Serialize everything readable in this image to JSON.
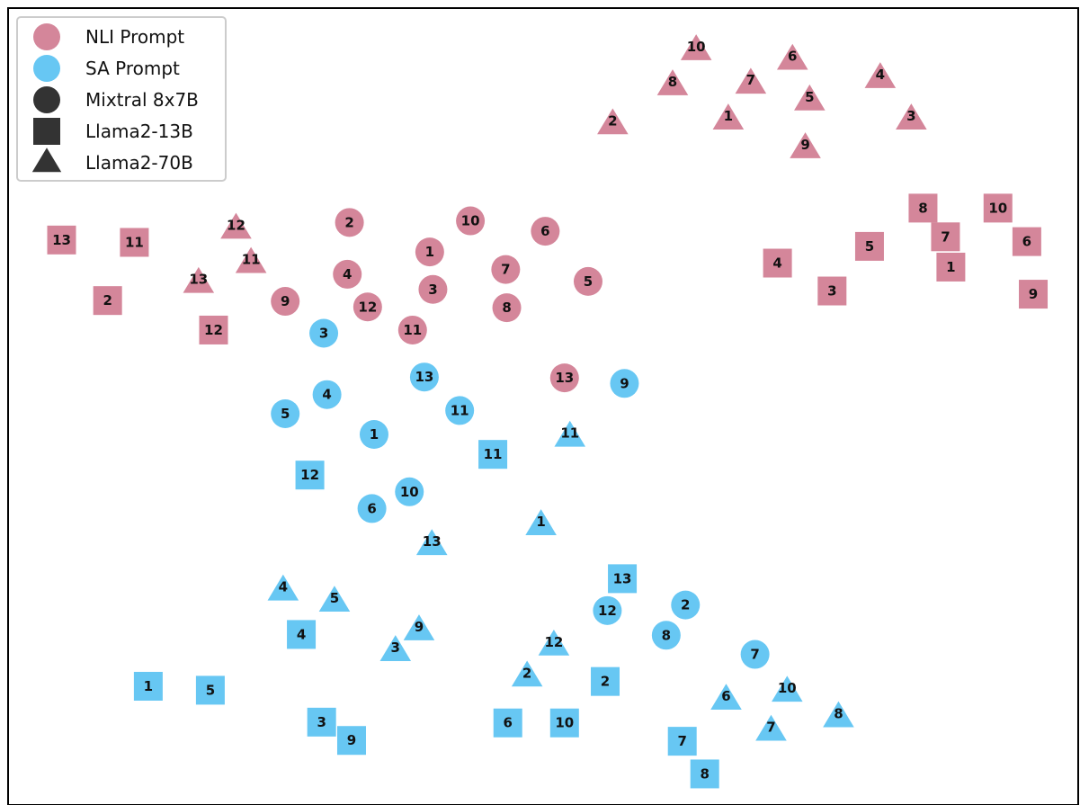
{
  "chart_data": {
    "type": "scatter",
    "title": "",
    "xlabel": "",
    "ylabel": "",
    "axes_visible": false,
    "grid": false,
    "legend_position": "top-left",
    "colors": {
      "NLI Prompt": "#d4869a",
      "SA Prompt": "#67c7f3",
      "legend_marker": "#333333"
    },
    "legend": [
      {
        "label": "NLI Prompt",
        "marker": "circle",
        "color": "#d4869a"
      },
      {
        "label": "SA Prompt",
        "marker": "circle",
        "color": "#67c7f3"
      },
      {
        "label": "Mixtral 8x7B",
        "marker": "circle",
        "color": "#333333"
      },
      {
        "label": "Llama2-13B",
        "marker": "square",
        "color": "#333333"
      },
      {
        "label": "Llama2-70B",
        "marker": "triangle",
        "color": "#333333"
      }
    ],
    "xlim": [
      0,
      1
    ],
    "ylim": [
      0,
      1
    ],
    "series": [
      {
        "prompt": "NLI Prompt",
        "model": "Mixtral 8x7B",
        "marker": "circle",
        "color": "#d4869a",
        "points": [
          {
            "label": "1",
            "x": 0.394,
            "y": 0.694
          },
          {
            "label": "2",
            "x": 0.319,
            "y": 0.731
          },
          {
            "label": "3",
            "x": 0.397,
            "y": 0.647
          },
          {
            "label": "4",
            "x": 0.317,
            "y": 0.666
          },
          {
            "label": "5",
            "x": 0.542,
            "y": 0.657
          },
          {
            "label": "6",
            "x": 0.502,
            "y": 0.72
          },
          {
            "label": "7",
            "x": 0.465,
            "y": 0.672
          },
          {
            "label": "8",
            "x": 0.466,
            "y": 0.624
          },
          {
            "label": "9",
            "x": 0.259,
            "y": 0.632
          },
          {
            "label": "10",
            "x": 0.432,
            "y": 0.733
          },
          {
            "label": "11",
            "x": 0.378,
            "y": 0.596
          },
          {
            "label": "12",
            "x": 0.336,
            "y": 0.625
          },
          {
            "label": "13",
            "x": 0.52,
            "y": 0.536
          }
        ]
      },
      {
        "prompt": "NLI Prompt",
        "model": "Llama2-13B",
        "marker": "square",
        "color": "#d4869a",
        "points": [
          {
            "label": "1",
            "x": 0.881,
            "y": 0.675
          },
          {
            "label": "2",
            "x": 0.093,
            "y": 0.633
          },
          {
            "label": "3",
            "x": 0.77,
            "y": 0.645
          },
          {
            "label": "4",
            "x": 0.719,
            "y": 0.68
          },
          {
            "label": "5",
            "x": 0.805,
            "y": 0.701
          },
          {
            "label": "6",
            "x": 0.952,
            "y": 0.707
          },
          {
            "label": "7",
            "x": 0.876,
            "y": 0.713
          },
          {
            "label": "8",
            "x": 0.855,
            "y": 0.749
          },
          {
            "label": "9",
            "x": 0.958,
            "y": 0.641
          },
          {
            "label": "10",
            "x": 0.925,
            "y": 0.749
          },
          {
            "label": "11",
            "x": 0.118,
            "y": 0.706
          },
          {
            "label": "12",
            "x": 0.192,
            "y": 0.596
          },
          {
            "label": "13",
            "x": 0.05,
            "y": 0.709
          }
        ]
      },
      {
        "prompt": "NLI Prompt",
        "model": "Llama2-70B",
        "marker": "triangle",
        "color": "#d4869a",
        "points": [
          {
            "label": "1",
            "x": 0.673,
            "y": 0.86
          },
          {
            "label": "2",
            "x": 0.565,
            "y": 0.854
          },
          {
            "label": "3",
            "x": 0.844,
            "y": 0.86
          },
          {
            "label": "4",
            "x": 0.815,
            "y": 0.912
          },
          {
            "label": "5",
            "x": 0.749,
            "y": 0.884
          },
          {
            "label": "6",
            "x": 0.733,
            "y": 0.935
          },
          {
            "label": "7",
            "x": 0.694,
            "y": 0.905
          },
          {
            "label": "8",
            "x": 0.621,
            "y": 0.903
          },
          {
            "label": "9",
            "x": 0.745,
            "y": 0.824
          },
          {
            "label": "10",
            "x": 0.643,
            "y": 0.947
          },
          {
            "label": "11",
            "x": 0.227,
            "y": 0.68
          },
          {
            "label": "12",
            "x": 0.213,
            "y": 0.723
          },
          {
            "label": "13",
            "x": 0.178,
            "y": 0.655
          }
        ]
      },
      {
        "prompt": "SA Prompt",
        "model": "Mixtral 8x7B",
        "marker": "circle",
        "color": "#67c7f3",
        "points": [
          {
            "label": "1",
            "x": 0.342,
            "y": 0.465
          },
          {
            "label": "2",
            "x": 0.633,
            "y": 0.251
          },
          {
            "label": "3",
            "x": 0.295,
            "y": 0.592
          },
          {
            "label": "4",
            "x": 0.298,
            "y": 0.515
          },
          {
            "label": "5",
            "x": 0.259,
            "y": 0.491
          },
          {
            "label": "6",
            "x": 0.34,
            "y": 0.372
          },
          {
            "label": "7",
            "x": 0.698,
            "y": 0.189
          },
          {
            "label": "8",
            "x": 0.615,
            "y": 0.213
          },
          {
            "label": "9",
            "x": 0.576,
            "y": 0.529
          },
          {
            "label": "10",
            "x": 0.375,
            "y": 0.393
          },
          {
            "label": "11",
            "x": 0.422,
            "y": 0.495
          },
          {
            "label": "12",
            "x": 0.56,
            "y": 0.244
          },
          {
            "label": "13",
            "x": 0.389,
            "y": 0.537
          }
        ]
      },
      {
        "prompt": "SA Prompt",
        "model": "Llama2-13B",
        "marker": "square",
        "color": "#67c7f3",
        "points": [
          {
            "label": "1",
            "x": 0.131,
            "y": 0.149
          },
          {
            "label": "2",
            "x": 0.558,
            "y": 0.155
          },
          {
            "label": "3",
            "x": 0.293,
            "y": 0.104
          },
          {
            "label": "4",
            "x": 0.274,
            "y": 0.214
          },
          {
            "label": "5",
            "x": 0.189,
            "y": 0.144
          },
          {
            "label": "6",
            "x": 0.467,
            "y": 0.103
          },
          {
            "label": "7",
            "x": 0.63,
            "y": 0.08
          },
          {
            "label": "8",
            "x": 0.651,
            "y": 0.039
          },
          {
            "label": "9",
            "x": 0.321,
            "y": 0.081
          },
          {
            "label": "10",
            "x": 0.52,
            "y": 0.103
          },
          {
            "label": "11",
            "x": 0.453,
            "y": 0.44
          },
          {
            "label": "12",
            "x": 0.282,
            "y": 0.414
          },
          {
            "label": "13",
            "x": 0.574,
            "y": 0.284
          }
        ]
      },
      {
        "prompt": "SA Prompt",
        "model": "Llama2-70B",
        "marker": "triangle",
        "color": "#67c7f3",
        "points": [
          {
            "label": "1",
            "x": 0.498,
            "y": 0.351
          },
          {
            "label": "2",
            "x": 0.485,
            "y": 0.161
          },
          {
            "label": "3",
            "x": 0.362,
            "y": 0.193
          },
          {
            "label": "4",
            "x": 0.257,
            "y": 0.269
          },
          {
            "label": "5",
            "x": 0.305,
            "y": 0.255
          },
          {
            "label": "6",
            "x": 0.671,
            "y": 0.132
          },
          {
            "label": "7",
            "x": 0.713,
            "y": 0.093
          },
          {
            "label": "8",
            "x": 0.776,
            "y": 0.11
          },
          {
            "label": "9",
            "x": 0.384,
            "y": 0.219
          },
          {
            "label": "10",
            "x": 0.728,
            "y": 0.142
          },
          {
            "label": "11",
            "x": 0.525,
            "y": 0.462
          },
          {
            "label": "12",
            "x": 0.51,
            "y": 0.2
          },
          {
            "label": "13",
            "x": 0.396,
            "y": 0.326
          }
        ]
      }
    ]
  }
}
